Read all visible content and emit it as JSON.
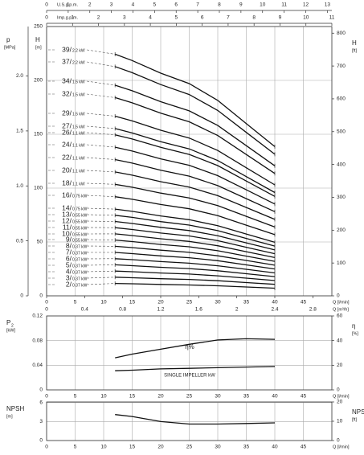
{
  "chart_data": [
    {
      "type": "line",
      "x": [
        12,
        15,
        20,
        25,
        30,
        35,
        40
      ],
      "xlim": [
        0,
        50
      ],
      "xticks": [
        0,
        5,
        10,
        15,
        20,
        25,
        30,
        35,
        40,
        45
      ],
      "xlabel": "Q [l/min]",
      "ylim": [
        0,
        250
      ],
      "yticks": [
        0,
        50,
        100,
        150,
        200,
        250
      ],
      "ylabel": "H",
      "yunit": "[m]",
      "y2lim": [
        0,
        820.2
      ],
      "y2ticks": [
        0,
        100,
        200,
        300,
        400,
        500,
        600,
        700,
        800
      ],
      "y2label": "H",
      "y2unit": "[ft]",
      "plim": [
        0,
        2.45
      ],
      "pticks": [
        0,
        0.5,
        {
          "value": 1,
          "label": "1.0"
        },
        1.5,
        {
          "value": 2,
          "label": "2.0"
        }
      ],
      "plabel": "p",
      "punit": "[MPa]",
      "m3hlim": [
        0,
        3
      ],
      "m3hticks": [
        0,
        0.4,
        0.8,
        1.2,
        1.6,
        2,
        2.4,
        2.8
      ],
      "m3hlabel": "Q [m³/h]",
      "usgpmlim": [
        0,
        13.21
      ],
      "usgpmticks": [
        0,
        1,
        2,
        3,
        4,
        5,
        6,
        7,
        8,
        9,
        10,
        11,
        12,
        13
      ],
      "usgpmlabel": "U.S.g.p.m.",
      "impgpmlim": [
        0,
        11
      ],
      "impgpmticks": [
        0,
        1,
        2,
        3,
        4,
        5,
        6,
        7,
        8,
        9,
        10,
        11
      ],
      "impgpmlabel": "Imp.g.p.m.",
      "grid": true,
      "series": [
        {
          "name": "39/",
          "power": "2.2 kW",
          "color": "#111",
          "values": [
            224.3,
            218.4,
            206.7,
            197.0,
            181.4,
            159.9,
            138.5
          ]
        },
        {
          "name": "37/",
          "power": "2.2 kW",
          "color": "#111",
          "values": [
            212.8,
            207.2,
            196.1,
            186.9,
            172.1,
            151.7,
            131.4
          ]
        },
        {
          "name": "34/",
          "power": "1.5 kW",
          "color": "#111",
          "values": [
            195.5,
            190.4,
            180.2,
            171.7,
            158.1,
            139.4,
            120.7
          ]
        },
        {
          "name": "32/",
          "power": "1.5 kW",
          "color": "#111",
          "values": [
            184.0,
            179.2,
            169.6,
            161.6,
            148.8,
            131.2,
            113.6
          ]
        },
        {
          "name": "29/",
          "power": "1.5 kW",
          "color": "#111",
          "values": [
            166.8,
            162.4,
            153.7,
            146.5,
            134.9,
            118.9,
            103.0
          ]
        },
        {
          "name": "27/",
          "power": "1.5 kW",
          "color": "#111",
          "values": [
            155.3,
            151.2,
            143.1,
            136.4,
            125.6,
            110.7,
            95.9
          ]
        },
        {
          "name": "26/",
          "power": "1.1 kW",
          "color": "#111",
          "values": [
            149.5,
            145.6,
            137.8,
            131.3,
            120.9,
            106.6,
            92.3
          ]
        },
        {
          "name": "24/",
          "power": "1.1 kW",
          "color": "#111",
          "values": [
            138.0,
            134.4,
            127.2,
            121.2,
            111.6,
            98.4,
            85.2
          ]
        },
        {
          "name": "22/",
          "power": "1.1 kW",
          "color": "#111",
          "values": [
            126.5,
            123.2,
            116.6,
            111.1,
            102.3,
            90.2,
            78.1
          ]
        },
        {
          "name": "20/",
          "power": "1.1 kW",
          "color": "#111",
          "values": [
            115.0,
            112.0,
            106.0,
            101.0,
            93.0,
            82.0,
            71.0
          ]
        },
        {
          "name": "18/",
          "power": "1.1 kW",
          "color": "#111",
          "values": [
            103.5,
            100.8,
            95.4,
            90.9,
            83.7,
            73.8,
            63.9
          ]
        },
        {
          "name": "16/",
          "power": "0.75 kW",
          "color": "#111",
          "values": [
            92.0,
            89.6,
            84.8,
            80.8,
            74.4,
            65.6,
            56.8
          ]
        },
        {
          "name": "14/",
          "power": "0.75 kW",
          "color": "#111",
          "values": [
            80.5,
            78.4,
            74.2,
            70.7,
            65.1,
            57.4,
            49.7
          ]
        },
        {
          "name": "13/",
          "power": "0.55 kW",
          "color": "#111",
          "values": [
            74.8,
            72.8,
            68.9,
            65.7,
            60.5,
            53.3,
            46.2
          ]
        },
        {
          "name": "12/",
          "power": "0.55 kW",
          "color": "#111",
          "values": [
            69.0,
            67.2,
            63.6,
            60.6,
            55.8,
            49.2,
            42.6
          ]
        },
        {
          "name": "11/",
          "power": "0.55 kW",
          "color": "#111",
          "values": [
            63.3,
            61.6,
            58.3,
            55.6,
            51.2,
            45.1,
            39.1
          ]
        },
        {
          "name": "10/",
          "power": "0.55 kW",
          "color": "#111",
          "values": [
            57.5,
            56.0,
            53.0,
            50.5,
            46.5,
            41.0,
            35.5
          ]
        },
        {
          "name": "9/",
          "power": "0.55 kW",
          "color": "#111",
          "values": [
            51.8,
            50.4,
            47.7,
            45.5,
            41.9,
            36.9,
            32.0
          ]
        },
        {
          "name": "8/",
          "power": "0.37 kW",
          "color": "#111",
          "values": [
            46.0,
            44.8,
            42.4,
            40.4,
            37.2,
            32.8,
            28.4
          ]
        },
        {
          "name": "7/",
          "power": "0.37 kW",
          "color": "#111",
          "values": [
            40.3,
            39.2,
            37.1,
            35.4,
            32.6,
            28.7,
            24.9
          ]
        },
        {
          "name": "6/",
          "power": "0.37 kW",
          "color": "#111",
          "values": [
            34.5,
            33.6,
            31.8,
            30.3,
            27.9,
            24.6,
            21.3
          ]
        },
        {
          "name": "5/",
          "power": "0.37 kW",
          "color": "#111",
          "values": [
            28.8,
            28.0,
            26.5,
            25.3,
            23.3,
            20.5,
            17.8
          ]
        },
        {
          "name": "4/",
          "power": "0.37 kW",
          "color": "#111",
          "values": [
            23.0,
            22.4,
            21.2,
            20.2,
            18.6,
            16.4,
            14.2
          ]
        },
        {
          "name": "3/",
          "power": "0.37 kW",
          "color": "#111",
          "values": [
            17.3,
            16.8,
            15.9,
            15.2,
            14.0,
            12.3,
            10.7
          ]
        },
        {
          "name": "2/",
          "power": "0.37 kW",
          "color": "#111",
          "values": [
            11.5,
            11.2,
            10.6,
            10.1,
            9.3,
            8.2,
            7.1
          ]
        }
      ]
    },
    {
      "type": "line",
      "x": [
        12,
        15,
        20,
        25,
        30,
        35,
        40
      ],
      "xlim": [
        0,
        50
      ],
      "xticks": [
        0,
        5,
        10,
        15,
        20,
        25,
        30,
        35,
        40,
        45
      ],
      "xlabel": "Q [l/min]",
      "ylim": [
        0,
        0.12
      ],
      "yticks": [
        0,
        0.04,
        0.08,
        0.12
      ],
      "ylabel": "P",
      "ylabel_sub": "2",
      "yunit": "[kW]",
      "y2lim": [
        0,
        60
      ],
      "y2ticks": [
        0,
        20,
        40,
        60
      ],
      "y2label": "η",
      "y2unit": "[%]",
      "grid": true,
      "series": [
        {
          "name": "η%",
          "axis": "y2",
          "color": "#111",
          "values": [
            26,
            29,
            33,
            37,
            40.5,
            41.5,
            41
          ]
        },
        {
          "name": "SINGLE IMPELLER kW",
          "color": "#111",
          "values": [
            0.031,
            0.032,
            0.034,
            0.035,
            0.036,
            0.037,
            0.038
          ]
        }
      ]
    },
    {
      "type": "line",
      "x": [
        12,
        15,
        20,
        25,
        30,
        35,
        40
      ],
      "xlim": [
        0,
        50
      ],
      "xticks": [
        0,
        5,
        10,
        15,
        20,
        25,
        30,
        35,
        40,
        45
      ],
      "xlabel": "Q [l/min]",
      "ylim": [
        0,
        6.1
      ],
      "yticks": [
        0,
        3,
        6
      ],
      "ylabel": "NPSH",
      "yunit": "[m]",
      "y2lim": [
        0,
        20
      ],
      "y2ticks": [
        0,
        10,
        20
      ],
      "y2label": "NPSH",
      "y2unit": "[ft]",
      "grid": true,
      "series": [
        {
          "color": "#111",
          "values": [
            4.1,
            3.8,
            3.0,
            2.6,
            2.6,
            2.7,
            2.8
          ]
        }
      ]
    }
  ]
}
